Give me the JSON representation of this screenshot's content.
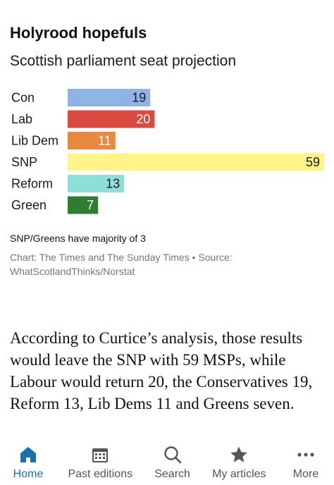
{
  "graphic": {
    "headline": "Holyrood hopefuls",
    "subhead": "Scottish parliament seat projection",
    "note": "SNP/Greens have majority of 3",
    "credit": "Chart: The Times and The Sunday Times • Source: WhatScotlandThinks/Norstat"
  },
  "chart_data": {
    "type": "bar",
    "categories": [
      "Con",
      "Lab",
      "Lib Dem",
      "SNP",
      "Reform",
      "Green"
    ],
    "values": [
      19,
      20,
      11,
      59,
      13,
      7
    ],
    "colors": [
      "#8fb4e3",
      "#d94b40",
      "#e8893f",
      "#fff38a",
      "#8fdfd9",
      "#2e7d32"
    ],
    "label_colors": [
      "#1a1a1a",
      "#ffffff",
      "#ffffff",
      "#1a1a1a",
      "#1a1a1a",
      "#ffffff"
    ],
    "title": "Holyrood hopefuls",
    "subtitle": "Scottish parliament seat projection",
    "xlim": [
      0,
      59
    ]
  },
  "article": {
    "paragraph": "According to Curtice’s analysis, those results would leave the SNP with 59 MSPs, while Labour would return 20, the Conservatives 19, Reform 13, Lib Dems 11 and Greens seven."
  },
  "nav": {
    "items": [
      {
        "label": "Home",
        "icon": "home-icon",
        "active": true
      },
      {
        "label": "Past editions",
        "icon": "calendar-icon",
        "active": false
      },
      {
        "label": "Search",
        "icon": "search-icon",
        "active": false
      },
      {
        "label": "My articles",
        "icon": "star-icon",
        "active": false
      },
      {
        "label": "More",
        "icon": "more-icon",
        "active": false
      }
    ],
    "active_color": "#1a6fb3",
    "inactive_color": "#555555"
  }
}
